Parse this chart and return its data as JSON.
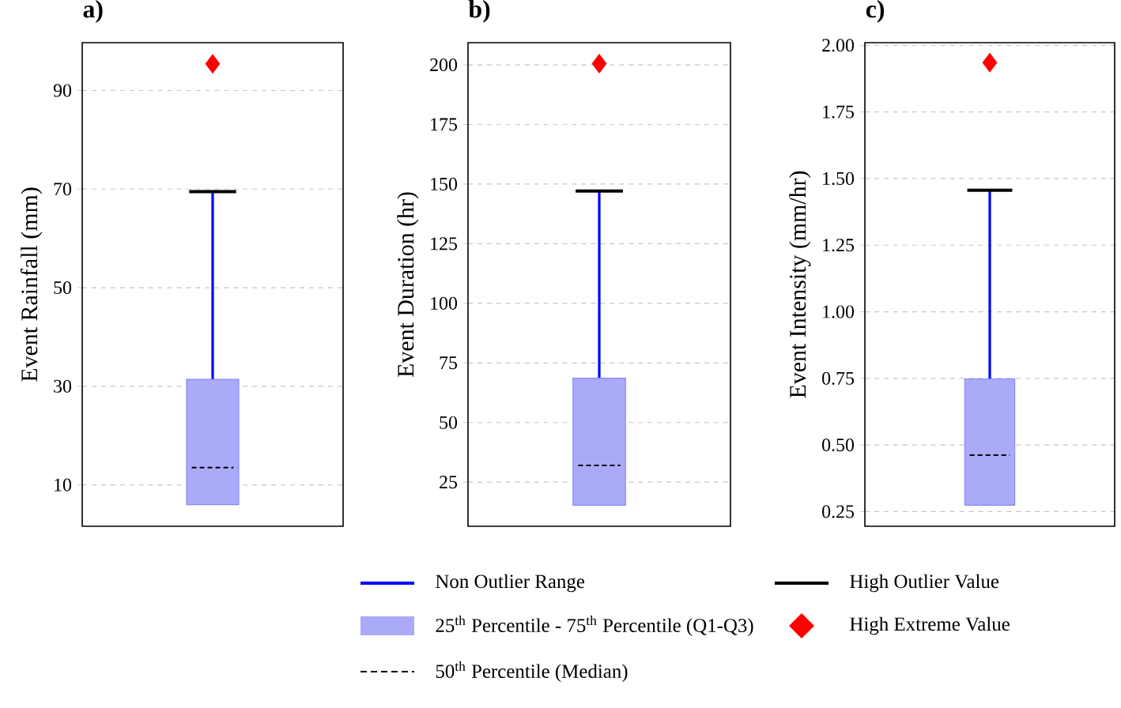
{
  "chart_data": [
    {
      "type": "box",
      "title": "a)",
      "ylabel": "Event Rainfall (mm)",
      "categories": [
        null
      ],
      "ylim": [
        1.6,
        99.7
      ],
      "yticks": [
        10,
        30,
        50,
        70,
        90
      ],
      "grid": "y",
      "boxes": [
        {
          "low": 6.0,
          "q1": 6.0,
          "median": 13.5,
          "q3": 31.4,
          "high": 69.5,
          "outliers": [
            95.4
          ]
        }
      ]
    },
    {
      "type": "box",
      "title": "b)",
      "ylabel": "Event Duration (hr)",
      "categories": [
        null
      ],
      "ylim": [
        6.5,
        209.3
      ],
      "yticks": [
        25,
        50,
        75,
        100,
        125,
        150,
        175,
        200
      ],
      "grid": "y",
      "boxes": [
        {
          "low": 15.3,
          "q1": 15.3,
          "median": 32,
          "q3": 68.6,
          "high": 147.1,
          "outliers": [
            200.5
          ]
        }
      ]
    },
    {
      "type": "box",
      "title": "c)",
      "ylabel": "Event Intensity (mm/hr)",
      "categories": [
        null
      ],
      "ylim": [
        0.195,
        2.01
      ],
      "yticks": [
        {
          "value": 0.25,
          "label": "0.25"
        },
        {
          "value": 0.5,
          "label": "0.50"
        },
        {
          "value": 0.75,
          "label": "0.75"
        },
        {
          "value": 1.0,
          "label": "1.00"
        },
        {
          "value": 1.25,
          "label": "1.25"
        },
        {
          "value": 1.5,
          "label": "1.50"
        },
        {
          "value": 1.75,
          "label": "1.75"
        },
        {
          "value": 2.0,
          "label": "2.00"
        }
      ],
      "grid": "y",
      "boxes": [
        {
          "low": 0.274,
          "q1": 0.274,
          "median": 0.462,
          "q3": 0.748,
          "high": 1.456,
          "outliers": [
            1.935
          ]
        }
      ]
    },
    {
      "type": "other",
      "categories": [
        "Non Outlier Range",
        "25$^{th}$ Percentile - 75$^{th}$ Percentile (Q1-Q3)",
        "50$^{th}$ Percentile (Median)",
        "High Outlier Value",
        "High Extreme Value"
      ],
      "colors": [
        "#0000ff",
        "#aaaaf8",
        "#000000",
        "#000000",
        "#ff0000"
      ]
    }
  ]
}
